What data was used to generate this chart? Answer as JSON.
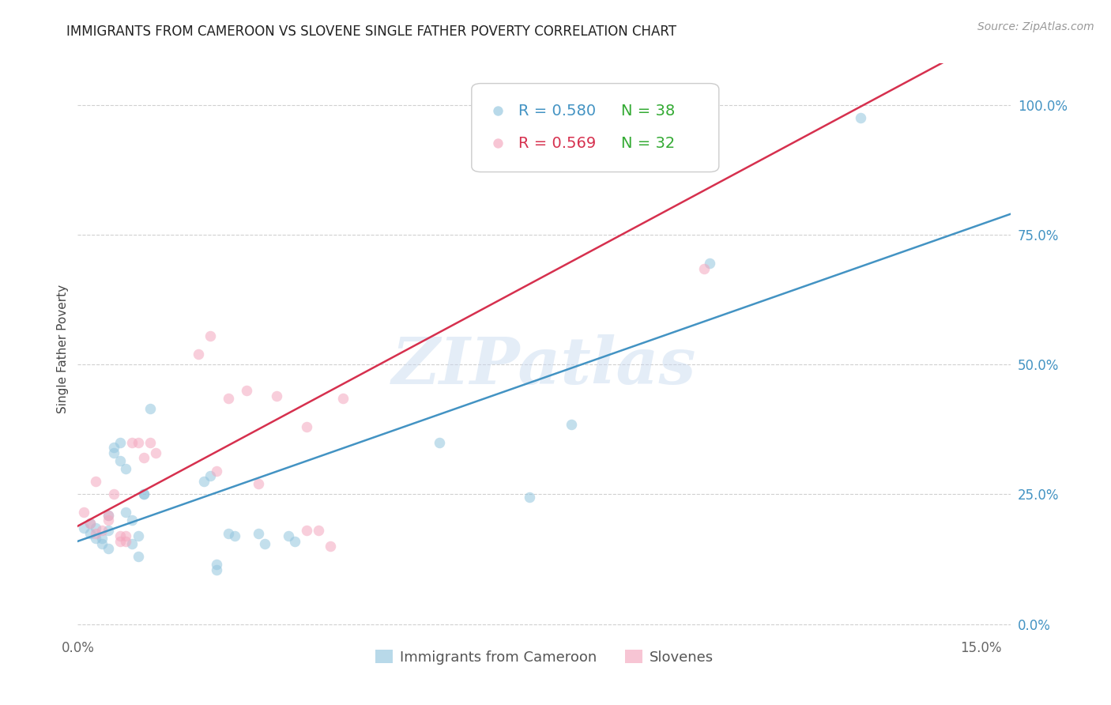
{
  "title": "IMMIGRANTS FROM CAMEROON VS SLOVENE SINGLE FATHER POVERTY CORRELATION CHART",
  "source": "Source: ZipAtlas.com",
  "ylabel": "Single Father Poverty",
  "xlim": [
    0.0,
    0.155
  ],
  "ylim": [
    -0.02,
    1.08
  ],
  "right_yticks": [
    0.0,
    0.25,
    0.5,
    0.75,
    1.0
  ],
  "right_yticklabels": [
    "0.0%",
    "25.0%",
    "50.0%",
    "75.0%",
    "100.0%"
  ],
  "xtick_vals": [
    0.0,
    0.03,
    0.06,
    0.09,
    0.12,
    0.15
  ],
  "xticklabels": [
    "0.0%",
    "",
    "",
    "",
    "",
    "15.0%"
  ],
  "blue_fill": "#92c5de",
  "pink_fill": "#f4a6be",
  "blue_line_color": "#4393c3",
  "pink_line_color": "#d6304e",
  "right_axis_color": "#4393c3",
  "blue_r": "0.580",
  "blue_n": "38",
  "pink_r": "0.569",
  "pink_n": "32",
  "legend_n_color": "#33aa33",
  "watermark_text": "ZIPatlas",
  "watermark_color": "#c5d8ef",
  "grid_color": "#d0d0d0",
  "title_color": "#222222",
  "source_color": "#999999",
  "blue_x": [
    0.001,
    0.002,
    0.002,
    0.003,
    0.003,
    0.004,
    0.004,
    0.005,
    0.005,
    0.005,
    0.006,
    0.006,
    0.007,
    0.007,
    0.008,
    0.008,
    0.009,
    0.009,
    0.01,
    0.01,
    0.011,
    0.011,
    0.012,
    0.021,
    0.022,
    0.023,
    0.023,
    0.025,
    0.026,
    0.03,
    0.031,
    0.035,
    0.036,
    0.06,
    0.075,
    0.082,
    0.105,
    0.13
  ],
  "blue_y": [
    0.185,
    0.175,
    0.195,
    0.165,
    0.185,
    0.155,
    0.165,
    0.21,
    0.145,
    0.18,
    0.33,
    0.34,
    0.315,
    0.35,
    0.3,
    0.215,
    0.155,
    0.2,
    0.13,
    0.17,
    0.25,
    0.25,
    0.415,
    0.275,
    0.285,
    0.105,
    0.115,
    0.175,
    0.17,
    0.175,
    0.155,
    0.17,
    0.16,
    0.35,
    0.245,
    0.385,
    0.695,
    0.975
  ],
  "pink_x": [
    0.001,
    0.002,
    0.003,
    0.003,
    0.004,
    0.005,
    0.005,
    0.006,
    0.007,
    0.007,
    0.008,
    0.008,
    0.009,
    0.01,
    0.011,
    0.012,
    0.013,
    0.02,
    0.022,
    0.023,
    0.025,
    0.028,
    0.03,
    0.033,
    0.038,
    0.04,
    0.042,
    0.044,
    0.1,
    0.102,
    0.104,
    0.038
  ],
  "pink_y": [
    0.215,
    0.195,
    0.175,
    0.275,
    0.18,
    0.2,
    0.21,
    0.25,
    0.16,
    0.17,
    0.17,
    0.16,
    0.35,
    0.35,
    0.32,
    0.35,
    0.33,
    0.52,
    0.555,
    0.295,
    0.435,
    0.45,
    0.27,
    0.44,
    0.18,
    0.18,
    0.15,
    0.435,
    1.0,
    1.0,
    0.685,
    0.38
  ]
}
